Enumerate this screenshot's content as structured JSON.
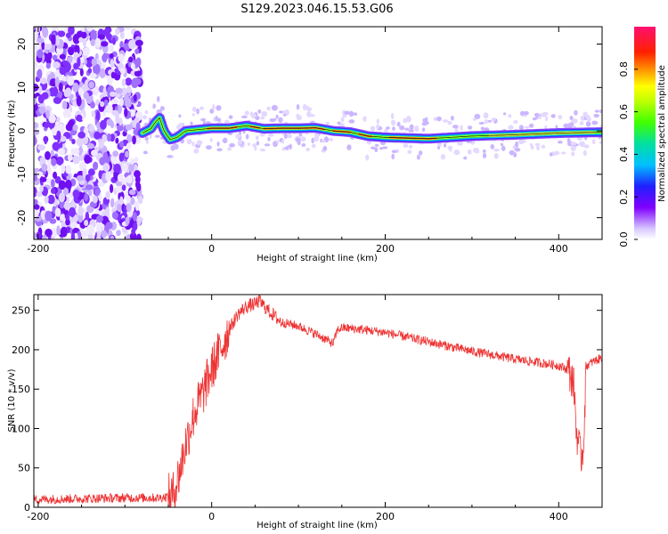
{
  "title": "S129.2023.046.15.53.G06",
  "chart_data": [
    {
      "type": "heatmap",
      "xlabel": "Height of straight line (km)",
      "ylabel": "Frequency (Hz)",
      "xlim": [
        -205,
        450
      ],
      "ylim": [
        -25,
        24
      ],
      "x_ticks": [
        -200,
        0,
        200,
        400
      ],
      "y_ticks": [
        -20,
        -10,
        0,
        10,
        20
      ],
      "colorbar": {
        "label": "Normalized spectral amplitude",
        "range": [
          0,
          1
        ],
        "ticks": [
          0.0,
          0.2,
          0.4,
          0.6,
          0.8
        ],
        "tick_labels": [
          "0.0",
          "0.2",
          "0.4",
          "0.6",
          "0.8"
        ]
      },
      "noise_region_x": [
        -205,
        -82
      ],
      "ridge": [
        {
          "x": -80,
          "y": -0.5
        },
        {
          "x": -70,
          "y": 0.5
        },
        {
          "x": -65,
          "y": 2.0
        },
        {
          "x": -60,
          "y": 3.0
        },
        {
          "x": -55,
          "y": 0.0
        },
        {
          "x": -48,
          "y": -2.0
        },
        {
          "x": -40,
          "y": -1.5
        },
        {
          "x": -30,
          "y": 0.0
        },
        {
          "x": -15,
          "y": 0.3
        },
        {
          "x": 0,
          "y": 0.6
        },
        {
          "x": 20,
          "y": 0.6
        },
        {
          "x": 40,
          "y": 1.2
        },
        {
          "x": 60,
          "y": 0.5
        },
        {
          "x": 80,
          "y": 0.6
        },
        {
          "x": 100,
          "y": 0.6
        },
        {
          "x": 120,
          "y": 0.7
        },
        {
          "x": 140,
          "y": 0.0
        },
        {
          "x": 160,
          "y": -0.3
        },
        {
          "x": 180,
          "y": -1.2
        },
        {
          "x": 200,
          "y": -1.5
        },
        {
          "x": 250,
          "y": -1.8
        },
        {
          "x": 300,
          "y": -1.2
        },
        {
          "x": 350,
          "y": -0.9
        },
        {
          "x": 400,
          "y": -0.5
        },
        {
          "x": 450,
          "y": -0.3
        }
      ]
    },
    {
      "type": "line",
      "xlabel": "Height of straight line (km)",
      "ylabel": "SNR (10 * v/v)",
      "xlim": [
        -205,
        450
      ],
      "ylim": [
        0,
        270
      ],
      "x_ticks": [
        -200,
        0,
        200,
        400
      ],
      "y_ticks": [
        0,
        50,
        100,
        150,
        200,
        250
      ],
      "color": "#ee3333",
      "series": [
        {
          "x": [
            -205,
            -150,
            -100,
            -60,
            -45,
            -38,
            -30,
            -20,
            -10,
            0,
            10,
            20,
            30,
            40,
            50,
            55,
            65,
            80,
            100,
            120,
            140,
            145,
            150,
            170,
            200,
            250,
            300,
            350,
            400,
            410,
            415,
            418,
            420,
            423,
            425,
            428,
            432,
            440,
            450
          ],
          "y": [
            10,
            11,
            12,
            12,
            15,
            40,
            80,
            120,
            145,
            175,
            200,
            225,
            245,
            255,
            258,
            262,
            250,
            235,
            230,
            220,
            208,
            225,
            228,
            226,
            222,
            210,
            198,
            188,
            180,
            175,
            165,
            150,
            100,
            80,
            65,
            70,
            180,
            185,
            190
          ]
        }
      ]
    }
  ]
}
